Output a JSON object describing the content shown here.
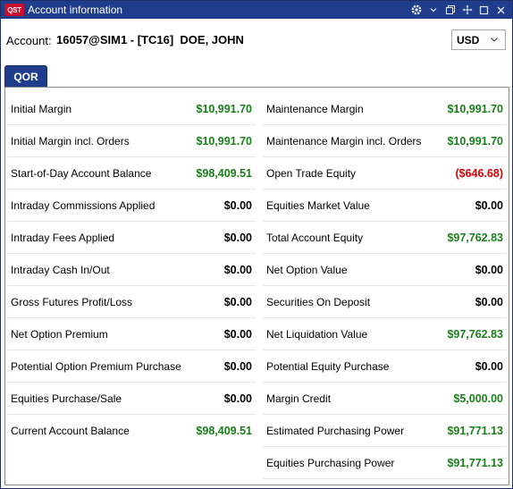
{
  "window": {
    "logo_text": "QST",
    "title": "Account information"
  },
  "account": {
    "label": "Account:",
    "value": "16057@SIM1 - [TC16]  DOE, JOHN",
    "currency": "USD"
  },
  "tabs": [
    {
      "label": "QOR"
    }
  ],
  "colors": {
    "positive": "#1a7f1a",
    "negative": "#d40000",
    "titlebar": "#1f3d8a"
  },
  "left_rows": [
    {
      "label": "Initial Margin",
      "value": "$10,991.70",
      "tone": "pos"
    },
    {
      "label": "Initial Margin incl. Orders",
      "value": "$10,991.70",
      "tone": "pos"
    },
    {
      "label": "Start-of-Day Account Balance",
      "value": "$98,409.51",
      "tone": "pos"
    },
    {
      "label": "Intraday Commissions Applied",
      "value": "$0.00",
      "tone": "zero"
    },
    {
      "label": "Intraday Fees Applied",
      "value": "$0.00",
      "tone": "zero"
    },
    {
      "label": "Intraday Cash In/Out",
      "value": "$0.00",
      "tone": "zero"
    },
    {
      "label": "Gross Futures Profit/Loss",
      "value": "$0.00",
      "tone": "zero"
    },
    {
      "label": "Net Option Premium",
      "value": "$0.00",
      "tone": "zero"
    },
    {
      "label": "Potential Option Premium Purchase",
      "value": "$0.00",
      "tone": "zero"
    },
    {
      "label": "Equities Purchase/Sale",
      "value": "$0.00",
      "tone": "zero"
    },
    {
      "label": "Current Account Balance",
      "value": "$98,409.51",
      "tone": "pos"
    }
  ],
  "right_rows": [
    {
      "label": "Maintenance Margin",
      "value": "$10,991.70",
      "tone": "pos"
    },
    {
      "label": "Maintenance Margin incl. Orders",
      "value": "$10,991.70",
      "tone": "pos"
    },
    {
      "label": "Open Trade Equity",
      "value": "($646.68)",
      "tone": "neg"
    },
    {
      "label": "Equities Market Value",
      "value": "$0.00",
      "tone": "zero"
    },
    {
      "label": "Total Account Equity",
      "value": "$97,762.83",
      "tone": "pos"
    },
    {
      "label": "Net Option Value",
      "value": "$0.00",
      "tone": "zero"
    },
    {
      "label": "Securities On Deposit",
      "value": "$0.00",
      "tone": "zero"
    },
    {
      "label": "Net Liquidation Value",
      "value": "$97,762.83",
      "tone": "pos"
    },
    {
      "label": "Potential Equity Purchase",
      "value": "$0.00",
      "tone": "zero"
    },
    {
      "label": "Margin Credit",
      "value": "$5,000.00",
      "tone": "pos"
    },
    {
      "label": "Estimated Purchasing Power",
      "value": "$91,771.13",
      "tone": "pos"
    },
    {
      "label": "Equities Purchasing Power",
      "value": "$91,771.13",
      "tone": "pos"
    }
  ]
}
